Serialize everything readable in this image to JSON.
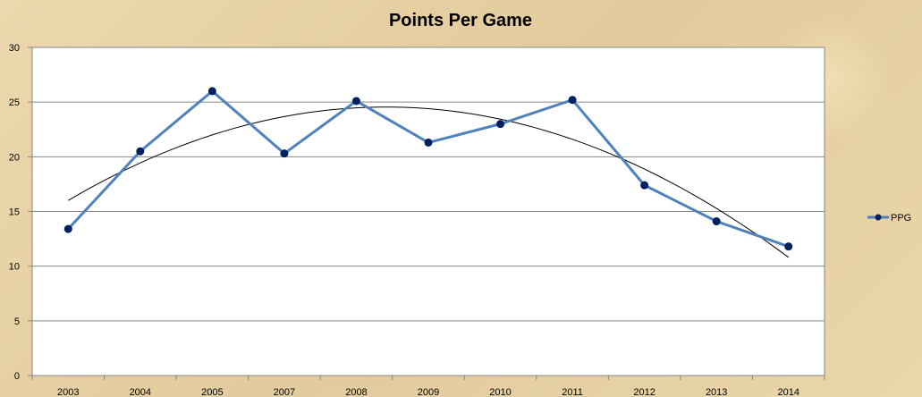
{
  "chart_data": {
    "type": "line",
    "title": "Points Per Game",
    "categories": [
      "2003",
      "2004",
      "2005",
      "2007",
      "2008",
      "2009",
      "2010",
      "2011",
      "2012",
      "2013",
      "2014"
    ],
    "series": [
      {
        "name": "PPG",
        "values": [
          13.4,
          20.5,
          26.0,
          20.3,
          25.1,
          21.3,
          23.0,
          25.2,
          17.4,
          14.1,
          11.8
        ]
      }
    ],
    "trendline": {
      "type": "polynomial",
      "order": 2,
      "values": [
        15.7,
        19.6,
        22.3,
        23.8,
        24.4,
        24.3,
        23.3,
        21.6,
        18.9,
        15.1,
        11.0
      ]
    },
    "ylim": [
      0,
      30
    ],
    "yticks": [
      "0",
      "5",
      "10",
      "15",
      "20",
      "25",
      "30"
    ],
    "grid": true,
    "legend_position": "right",
    "colors": {
      "series": "#4f81bd",
      "marker": "#002060",
      "trendline": "#000000",
      "plot_bg": "#ffffff",
      "grid": "#868686"
    }
  }
}
